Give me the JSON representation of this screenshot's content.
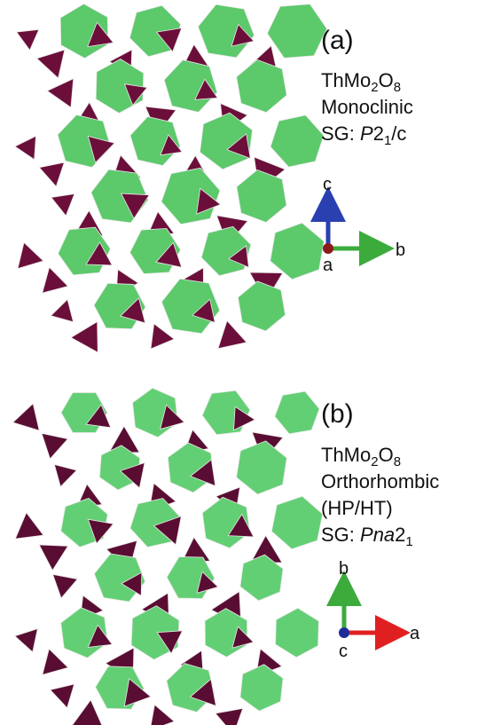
{
  "panels": [
    {
      "label": "(a)",
      "formula": [
        "ThMo",
        "2",
        "O",
        "8"
      ],
      "lines": [
        "Monoclinic"
      ],
      "space_group": [
        "SG: ",
        "P",
        "2",
        "1",
        "/c"
      ],
      "axes": {
        "up": "c",
        "right": "b",
        "origin": "a"
      }
    },
    {
      "label": "(b)",
      "formula": [
        "ThMo",
        "2",
        "O",
        "8"
      ],
      "lines": [
        "Orthorhombic",
        "(HP/HT)"
      ],
      "space_group": [
        "SG: ",
        "Pna",
        "2",
        "1"
      ],
      "axes": {
        "up": "b",
        "right": "a",
        "origin": "c"
      }
    }
  ]
}
